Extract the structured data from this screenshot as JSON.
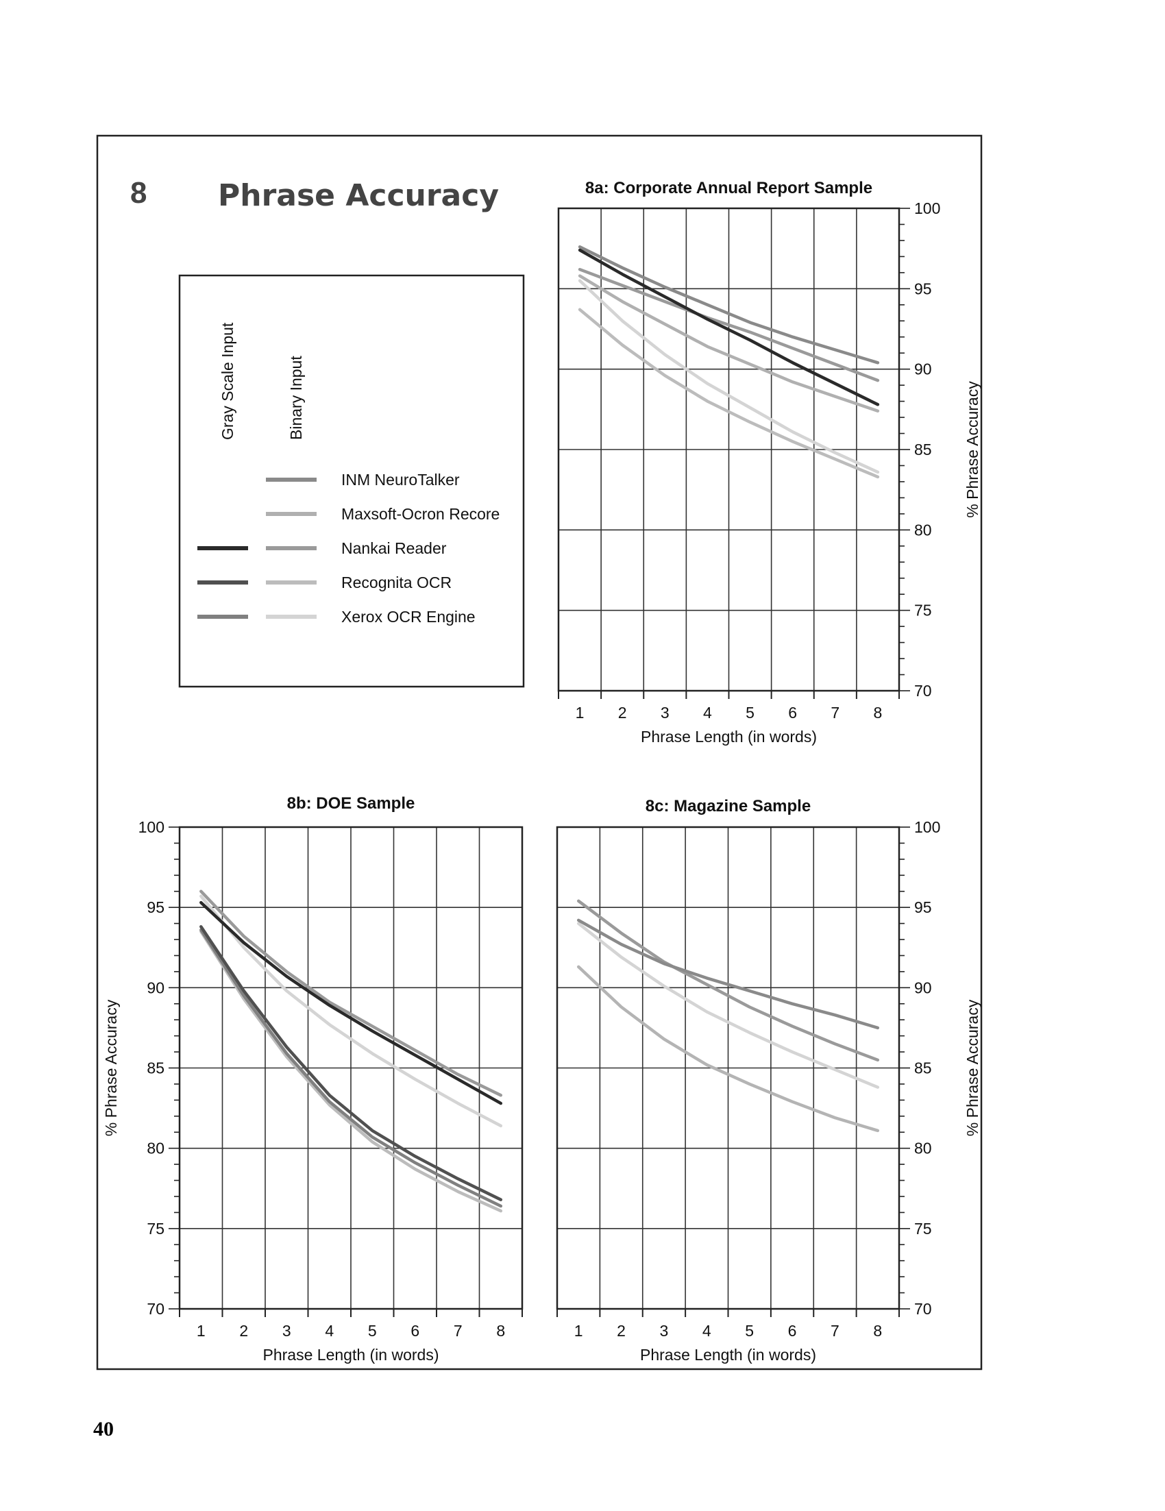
{
  "page_number": "40",
  "section": {
    "number": "8",
    "title": "Phrase Accuracy"
  },
  "legend": {
    "column_headers": [
      "Gray Scale Input",
      "Binary Input"
    ],
    "entries": [
      {
        "name": "INM NeuroTalker",
        "gray_color": null,
        "binary_color": "#8a8a8a"
      },
      {
        "name": "Maxsoft-Ocron Recore",
        "gray_color": null,
        "binary_color": "#b0b0b0"
      },
      {
        "name": "Nankai Reader",
        "gray_color": "#2a2a2a",
        "binary_color": "#9a9a9a"
      },
      {
        "name": "Recognita OCR",
        "gray_color": "#505050",
        "binary_color": "#bcbcbc"
      },
      {
        "name": "Xerox OCR Engine",
        "gray_color": "#808080",
        "binary_color": "#d4d4d4"
      }
    ]
  },
  "chart_data": [
    {
      "type": "line",
      "title": "8a: Corporate Annual Report Sample",
      "xlabel": "Phrase Length (in words)",
      "ylabel": "% Phrase Accuracy",
      "x": [
        1,
        2,
        3,
        4,
        5,
        6,
        7,
        8
      ],
      "xlim": [
        0.5,
        8.5
      ],
      "ylim": [
        70,
        100
      ],
      "x_ticks": [
        "1",
        "2",
        "3",
        "4",
        "5",
        "6",
        "7",
        "8"
      ],
      "y_ticks": [
        "70",
        "75",
        "80",
        "85",
        "90",
        "95",
        "100"
      ],
      "grid": true,
      "series": [
        {
          "name": "Nankai Reader",
          "input": "Gray Scale Input",
          "color": "#2a2a2a",
          "values": [
            97.4,
            95.9,
            94.5,
            93.1,
            91.8,
            90.4,
            89.1,
            87.8
          ]
        },
        {
          "name": "INM NeuroTalker",
          "input": "Binary Input",
          "color": "#8a8a8a",
          "values": [
            97.6,
            96.3,
            95.1,
            94.0,
            92.9,
            92.0,
            91.2,
            90.4
          ]
        },
        {
          "name": "Nankai Reader",
          "input": "Binary Input",
          "color": "#9a9a9a",
          "values": [
            96.2,
            95.2,
            94.2,
            93.2,
            92.3,
            91.3,
            90.3,
            89.3
          ]
        },
        {
          "name": "Maxsoft-Ocron Recore",
          "input": "Binary Input",
          "color": "#b0b0b0",
          "values": [
            95.8,
            94.2,
            92.8,
            91.4,
            90.3,
            89.2,
            88.3,
            87.4
          ]
        },
        {
          "name": "Recognita OCR",
          "input": "Binary Input",
          "color": "#bcbcbc",
          "values": [
            93.7,
            91.5,
            89.6,
            88.0,
            86.7,
            85.5,
            84.4,
            83.3
          ]
        },
        {
          "name": "Xerox OCR Engine",
          "input": "Binary Input",
          "color": "#d4d4d4",
          "values": [
            95.5,
            93.0,
            90.9,
            89.1,
            87.6,
            86.1,
            84.8,
            83.6
          ]
        }
      ]
    },
    {
      "type": "line",
      "title": "8b: DOE Sample",
      "xlabel": "Phrase Length (in words)",
      "ylabel": "% Phrase Accuracy",
      "x": [
        1,
        2,
        3,
        4,
        5,
        6,
        7,
        8
      ],
      "xlim": [
        0.5,
        8.5
      ],
      "ylim": [
        70,
        100
      ],
      "x_ticks": [
        "1",
        "2",
        "3",
        "4",
        "5",
        "6",
        "7",
        "8"
      ],
      "y_ticks": [
        "70",
        "75",
        "80",
        "85",
        "90",
        "95",
        "100"
      ],
      "grid": true,
      "series": [
        {
          "name": "Nankai Reader",
          "input": "Gray Scale Input",
          "color": "#2a2a2a",
          "values": [
            95.3,
            92.8,
            90.7,
            88.9,
            87.3,
            85.8,
            84.3,
            82.8
          ]
        },
        {
          "name": "Recognita OCR",
          "input": "Gray Scale Input",
          "color": "#505050",
          "values": [
            93.8,
            89.8,
            86.3,
            83.3,
            81.1,
            79.5,
            78.1,
            76.8
          ]
        },
        {
          "name": "Xerox OCR Engine",
          "input": "Gray Scale Input",
          "color": "#808080",
          "values": [
            93.6,
            89.5,
            85.9,
            82.9,
            80.7,
            79.1,
            77.7,
            76.4
          ]
        },
        {
          "name": "Nankai Reader",
          "input": "Binary Input",
          "color": "#9a9a9a",
          "values": [
            96.0,
            93.2,
            91.0,
            89.1,
            87.6,
            86.1,
            84.6,
            83.3
          ]
        },
        {
          "name": "Recognita OCR",
          "input": "Binary Input",
          "color": "#bcbcbc",
          "values": [
            93.5,
            89.3,
            85.7,
            82.7,
            80.4,
            78.7,
            77.3,
            76.1
          ]
        },
        {
          "name": "Xerox OCR Engine",
          "input": "Binary Input",
          "color": "#d4d4d4",
          "values": [
            95.7,
            92.5,
            89.8,
            87.7,
            85.9,
            84.3,
            82.8,
            81.4
          ]
        }
      ]
    },
    {
      "type": "line",
      "title": "8c: Magazine Sample",
      "xlabel": "Phrase Length (in words)",
      "ylabel": "% Phrase Accuracy",
      "x": [
        1,
        2,
        3,
        4,
        5,
        6,
        7,
        8
      ],
      "xlim": [
        0.5,
        8.5
      ],
      "ylim": [
        70,
        100
      ],
      "x_ticks": [
        "1",
        "2",
        "3",
        "4",
        "5",
        "6",
        "7",
        "8"
      ],
      "y_ticks": [
        "70",
        "75",
        "80",
        "85",
        "90",
        "95",
        "100"
      ],
      "grid": true,
      "series": [
        {
          "name": "INM NeuroTalker",
          "input": "Binary Input",
          "color": "#8a8a8a",
          "values": [
            94.2,
            92.7,
            91.5,
            90.6,
            89.8,
            89.0,
            88.3,
            87.5
          ]
        },
        {
          "name": "Nankai Reader",
          "input": "Binary Input",
          "color": "#9a9a9a",
          "values": [
            95.4,
            93.4,
            91.6,
            90.2,
            88.8,
            87.6,
            86.5,
            85.5
          ]
        },
        {
          "name": "Recognita OCR",
          "input": "Binary Input",
          "color": "#b4b4b4",
          "values": [
            91.3,
            88.8,
            86.8,
            85.2,
            84.0,
            82.9,
            81.9,
            81.1
          ]
        },
        {
          "name": "Xerox OCR Engine",
          "input": "Binary Input",
          "color": "#d4d4d4",
          "values": [
            94.0,
            91.9,
            90.1,
            88.5,
            87.2,
            86.0,
            84.9,
            83.8
          ]
        }
      ]
    }
  ]
}
